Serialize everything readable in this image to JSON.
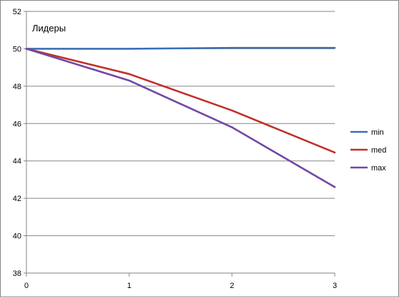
{
  "chart_data": {
    "type": "line",
    "x": [
      0,
      1,
      2,
      3
    ],
    "xlim": [
      0,
      3
    ],
    "ylim": [
      38,
      52
    ],
    "x_ticks": [
      "0",
      "1",
      "2",
      "3"
    ],
    "y_ticks": [
      "38",
      "40",
      "42",
      "44",
      "46",
      "48",
      "50",
      "52"
    ],
    "grid": "horizontal",
    "legend_position": "right",
    "annotation": "Лидеры",
    "series": [
      {
        "name": "min",
        "color": "#3a6fb5",
        "values": [
          50,
          50,
          50.05,
          50.05
        ]
      },
      {
        "name": "med",
        "color": "#c0302b",
        "values": [
          50,
          48.65,
          46.7,
          44.45
        ]
      },
      {
        "name": "max",
        "color": "#7247a4",
        "values": [
          50,
          48.3,
          45.8,
          42.6
        ]
      }
    ]
  }
}
